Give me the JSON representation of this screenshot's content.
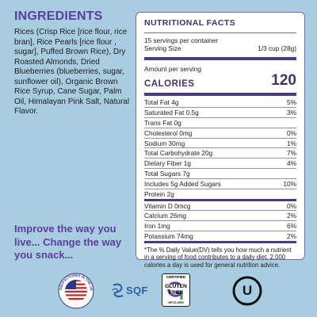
{
  "ingredients": {
    "title": "INGREDIENTS",
    "text": "Rices (Crisp Rice [rice flour, rice bran], Rice Pearls [rice flour , sugar], Puffed Brown Rice), Dry Roasted Almonds, Dried Blueberries (blueberries, sugar, sunflower oil), Organic Brown Rice Syrup, Cane Sugar, Palm Oil, Himalayan Pink Salt, Natural Flavor."
  },
  "tagline": "Improve the way you live... Change the way you snack...",
  "facts": {
    "title": "NUTRITIONAL FACTS",
    "servings_per_container": "15 servings per container",
    "serving_size_label": "Serving Size",
    "serving_size_value": "1/3 cup (28g)",
    "amount_per_serving": "Amount per serving",
    "calories_label": "CALORIES",
    "calories_value": "120",
    "rows": [
      {
        "label": "Total Fat 4g",
        "dv": "5%"
      },
      {
        "label": "Saturated Fat 0.5g",
        "dv": "3%"
      },
      {
        "label": "Trans Fat 0g",
        "dv": ""
      },
      {
        "label": "Cholesterol 0mg",
        "dv": "0%"
      },
      {
        "label": "Sodium 30mg",
        "dv": "1%"
      },
      {
        "label": "Total Carbohydrate 20g",
        "dv": "7%"
      },
      {
        "label": "Dietary Fiber 1g",
        "dv": "4%"
      },
      {
        "label": "Total Sugars 7g",
        "dv": ""
      },
      {
        "label": "Includes 5g Added Sugars",
        "dv": "10%"
      },
      {
        "label": "Protein 2g",
        "dv": ""
      },
      {
        "label": "Vitamin D 0mcg",
        "dv": "0%"
      },
      {
        "label": "Calcium 26mg",
        "dv": "2%"
      },
      {
        "label": "Iron 1mg",
        "dv": "6%"
      },
      {
        "label": "Potassium 74mg",
        "dv": "2%"
      }
    ],
    "footnote": "*The % Daily Value(DV) tells you how much a nutrient in a serving of food contributes to a daily diet. 2,000 calories a day is used for general nutrition advice."
  },
  "badges": {
    "usa_text": "MANUFACTURED IN THE USA",
    "sqf": "SQF",
    "gf_certified": "CERTIFIED",
    "gf_gluten": "GLUTEN",
    "gf_free": "FREE",
    "gf_org": "GFCO.ORG",
    "kosher": "U"
  },
  "colors": {
    "background": "#a8cde0",
    "accent": "#5a3f9c",
    "panel_border": "#7a67b3"
  }
}
